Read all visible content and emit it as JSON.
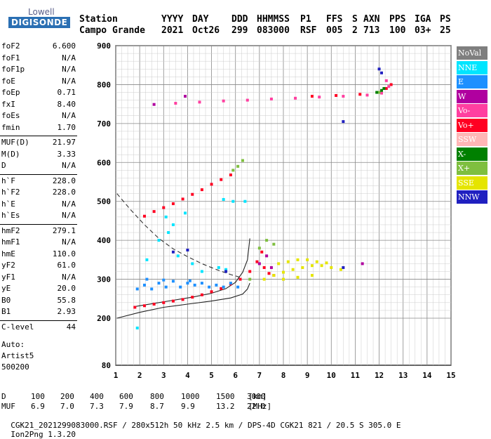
{
  "logo": {
    "top": "Lowell",
    "bottom": "DIGISONDE"
  },
  "header": {
    "row1": [
      "Station",
      "YYYY",
      "DAY",
      "DDD",
      "HHMMSS",
      "P1",
      "FFS",
      "S",
      "AXN",
      "PPS",
      "IGA",
      "PS"
    ],
    "row2": [
      "Campo Grande",
      "2021",
      "Oct26",
      "299",
      "083000",
      "RSF",
      "005",
      "2",
      "713",
      "100",
      "03+",
      "25"
    ]
  },
  "params": [
    {
      "label": "foF2",
      "value": "6.600"
    },
    {
      "label": "foF1",
      "value": "N/A"
    },
    {
      "label": "foF1p",
      "value": "N/A"
    },
    {
      "label": "foE",
      "value": "N/A"
    },
    {
      "label": "foEp",
      "value": "0.71"
    },
    {
      "label": "fxI",
      "value": "8.40"
    },
    {
      "label": "foEs",
      "value": "N/A"
    },
    {
      "label": "fmin",
      "value": "1.70"
    },
    {
      "label": "MUF(D)",
      "value": "21.97"
    },
    {
      "label": "M(D)",
      "value": "3.33"
    },
    {
      "label": "D",
      "value": "N/A"
    },
    {
      "label": "h`F",
      "value": "228.0"
    },
    {
      "label": "h`F2",
      "value": "228.0"
    },
    {
      "label": "h`E",
      "value": "N/A"
    },
    {
      "label": "h`Es",
      "value": "N/A"
    },
    {
      "label": "hmF2",
      "value": "279.1"
    },
    {
      "label": "hmF1",
      "value": "N/A"
    },
    {
      "label": "hmE",
      "value": "110.0"
    },
    {
      "label": "yF2",
      "value": "61.0"
    },
    {
      "label": "yF1",
      "value": "N/A"
    },
    {
      "label": "yE",
      "value": "20.0"
    },
    {
      "label": "B0",
      "value": "55.8"
    },
    {
      "label": "B1",
      "value": "2.93"
    },
    {
      "label": "C-level",
      "value": "44"
    }
  ],
  "auto": {
    "line1": "Auto:",
    "line2": "Artist5",
    "line3": "500200"
  },
  "legend": [
    {
      "label": "NoVal",
      "color": "#7f7f7f"
    },
    {
      "label": "NNE",
      "color": "#00e5ff"
    },
    {
      "label": "E",
      "color": "#1e90ff"
    },
    {
      "label": "W",
      "color": "#b0009f"
    },
    {
      "label": "Vo-",
      "color": "#ff3fa0"
    },
    {
      "label": "Vo+",
      "color": "#ff0022"
    },
    {
      "label": "SSW",
      "color": "#ffb6b6"
    },
    {
      "label": "X-",
      "color": "#008000"
    },
    {
      "label": "X+",
      "color": "#7fbf3f"
    },
    {
      "label": "SSE",
      "color": "#e5e500"
    },
    {
      "label": "NNW",
      "color": "#2020c0"
    }
  ],
  "footer": {
    "d_label": "D",
    "d_values": [
      "100",
      "200",
      "400",
      "600",
      "800",
      "1000",
      "1500",
      "3000"
    ],
    "d_unit": "[km]",
    "muf_label": "MUF",
    "muf_values": [
      "6.9",
      "7.0",
      "7.3",
      "7.9",
      "8.7",
      "9.9",
      "13.2",
      "22.0"
    ],
    "muf_unit": "[MHz]",
    "info": "CGK21_2021299083000.RSF / 280x512h 50 kHz 2.5 km / DPS-4D CGK21 821 / 20.5 S 305.0 E",
    "version": "Ion2Png 1.3.20"
  },
  "chart_data": {
    "type": "scatter",
    "x_ticks": [
      1,
      2,
      3,
      4,
      5,
      6,
      7,
      8,
      9,
      10,
      11,
      12,
      13,
      14,
      15
    ],
    "y_ticks": [
      80,
      200,
      300,
      400,
      500,
      600,
      700,
      800,
      900
    ],
    "xlim": [
      1,
      15
    ],
    "ylim": [
      80,
      900
    ],
    "grid": true,
    "legend_position": "right",
    "series": [
      {
        "name": "Vo+",
        "color": "#ff0022",
        "points": [
          [
            1.8,
            228
          ],
          [
            2.2,
            232
          ],
          [
            2.6,
            236
          ],
          [
            3.0,
            240
          ],
          [
            3.4,
            244
          ],
          [
            3.8,
            248
          ],
          [
            4.2,
            254
          ],
          [
            4.6,
            260
          ],
          [
            5.0,
            268
          ],
          [
            5.4,
            276
          ],
          [
            5.8,
            288
          ],
          [
            6.2,
            300
          ],
          [
            6.6,
            320
          ],
          [
            6.9,
            345
          ],
          [
            7.1,
            370
          ],
          [
            7.2,
            330
          ],
          [
            7.4,
            315
          ],
          [
            7.6,
            310
          ],
          [
            2.2,
            462
          ],
          [
            2.6,
            474
          ],
          [
            3.0,
            484
          ],
          [
            3.4,
            494
          ],
          [
            3.8,
            506
          ],
          [
            4.2,
            518
          ],
          [
            4.6,
            530
          ],
          [
            5.0,
            544
          ],
          [
            5.4,
            556
          ],
          [
            5.8,
            568
          ],
          [
            9.2,
            770
          ],
          [
            10.2,
            772
          ],
          [
            11.2,
            775
          ],
          [
            12.3,
            790
          ],
          [
            12.5,
            800
          ]
        ]
      },
      {
        "name": "Vo-",
        "color": "#ff3fa0",
        "points": [
          [
            3.5,
            752
          ],
          [
            4.5,
            755
          ],
          [
            5.5,
            758
          ],
          [
            6.5,
            760
          ],
          [
            7.5,
            763
          ],
          [
            8.5,
            765
          ],
          [
            9.5,
            768
          ],
          [
            10.5,
            770
          ],
          [
            11.5,
            773
          ],
          [
            12.1,
            778
          ],
          [
            12.4,
            795
          ],
          [
            12.3,
            810
          ]
        ]
      },
      {
        "name": "E",
        "color": "#1e90ff",
        "points": [
          [
            1.9,
            275
          ],
          [
            2.2,
            285
          ],
          [
            2.5,
            275
          ],
          [
            2.8,
            290
          ],
          [
            3.1,
            280
          ],
          [
            3.4,
            295
          ],
          [
            3.7,
            280
          ],
          [
            4.0,
            290
          ],
          [
            4.3,
            285
          ],
          [
            4.6,
            290
          ],
          [
            4.9,
            280
          ],
          [
            5.2,
            285
          ],
          [
            5.5,
            280
          ],
          [
            5.8,
            290
          ],
          [
            6.1,
            280
          ],
          [
            2.3,
            300
          ],
          [
            3.0,
            298
          ],
          [
            4.1,
            296
          ]
        ]
      },
      {
        "name": "NNE",
        "color": "#00e5ff",
        "points": [
          [
            2.3,
            350
          ],
          [
            2.8,
            400
          ],
          [
            3.2,
            420
          ],
          [
            3.6,
            360
          ],
          [
            4.2,
            340
          ],
          [
            4.6,
            320
          ],
          [
            5.3,
            330
          ],
          [
            5.6,
            325
          ],
          [
            3.1,
            460
          ],
          [
            3.4,
            440
          ],
          [
            3.9,
            470
          ],
          [
            5.5,
            505
          ],
          [
            5.9,
            500
          ],
          [
            6.4,
            500
          ],
          [
            1.9,
            175
          ]
        ]
      },
      {
        "name": "SSE",
        "color": "#e5e500",
        "points": [
          [
            7.2,
            300
          ],
          [
            7.6,
            310
          ],
          [
            8.0,
            318
          ],
          [
            8.4,
            325
          ],
          [
            8.8,
            330
          ],
          [
            9.2,
            335
          ],
          [
            9.6,
            335
          ],
          [
            10.0,
            330
          ],
          [
            10.4,
            325
          ],
          [
            7.8,
            340
          ],
          [
            8.2,
            345
          ],
          [
            8.6,
            350
          ],
          [
            9.0,
            350
          ],
          [
            9.4,
            345
          ],
          [
            9.8,
            342
          ],
          [
            8.0,
            300
          ],
          [
            8.6,
            305
          ],
          [
            9.2,
            310
          ]
        ]
      },
      {
        "name": "X+",
        "color": "#7fbf3f",
        "points": [
          [
            5.9,
            580
          ],
          [
            6.1,
            590
          ],
          [
            6.3,
            605
          ],
          [
            6.6,
            300
          ],
          [
            7.0,
            380
          ],
          [
            7.3,
            400
          ],
          [
            7.6,
            390
          ],
          [
            12.0,
            780
          ]
        ]
      },
      {
        "name": "X-",
        "color": "#008000",
        "points": [
          [
            11.9,
            780
          ],
          [
            12.1,
            785
          ],
          [
            12.2,
            790
          ]
        ]
      },
      {
        "name": "W",
        "color": "#b0009f",
        "points": [
          [
            7.0,
            340
          ],
          [
            7.3,
            360
          ],
          [
            7.5,
            330
          ],
          [
            11.3,
            340
          ],
          [
            2.6,
            749
          ],
          [
            3.9,
            770
          ]
        ]
      },
      {
        "name": "NNW",
        "color": "#2020c0",
        "points": [
          [
            3.4,
            370
          ],
          [
            4.0,
            375
          ],
          [
            5.6,
            320
          ],
          [
            10.5,
            330
          ],
          [
            12.0,
            840
          ],
          [
            12.1,
            830
          ],
          [
            10.5,
            705
          ]
        ]
      }
    ]
  }
}
